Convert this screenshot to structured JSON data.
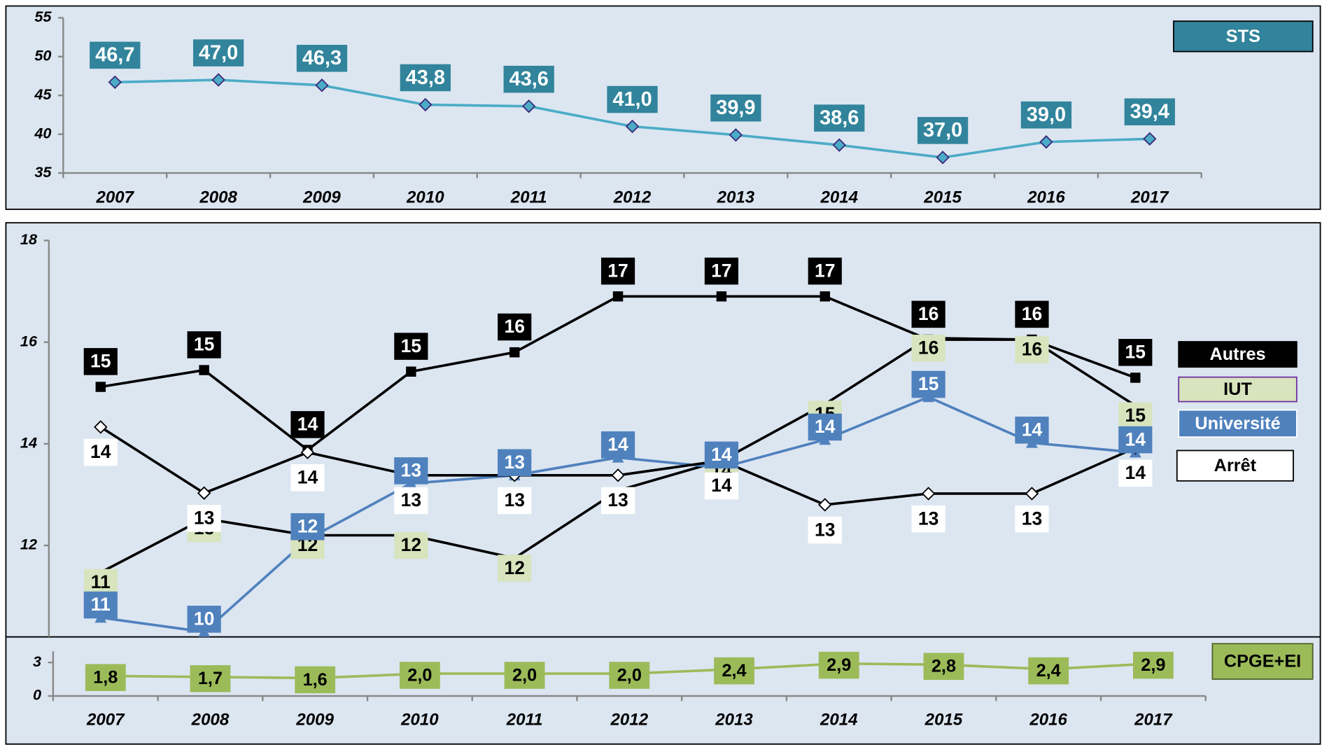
{
  "chart_data": [
    {
      "type": "line",
      "categories": [
        "2007",
        "2008",
        "2009",
        "2010",
        "2011",
        "2012",
        "2013",
        "2014",
        "2015",
        "2016",
        "2017"
      ],
      "series": [
        {
          "name": "STS",
          "color": "#31849b",
          "line_color": "#4bacc6",
          "marker": "diamond",
          "values": [
            46.7,
            47.0,
            46.3,
            43.8,
            43.6,
            41.0,
            39.9,
            38.6,
            37.0,
            39.0,
            39.4
          ],
          "value_labels": [
            "46,7",
            "47,0",
            "46,3",
            "43,8",
            "43,6",
            "41,0",
            "39,9",
            "38,6",
            "37,0",
            "39,0",
            "39,4"
          ]
        }
      ],
      "ylim": [
        35,
        55
      ],
      "yticks": [
        35,
        40,
        45,
        50,
        55
      ]
    },
    {
      "type": "line",
      "series": [
        {
          "name": "Autres",
          "color": "#000000",
          "line_color": "#000000",
          "marker": "square",
          "values": [
            15.12,
            15.45,
            13.88,
            15.42,
            15.8,
            16.9,
            16.9,
            16.9,
            16.05,
            16.05,
            15.3
          ],
          "value_labels": [
            "15",
            "15",
            "14",
            "15",
            "16",
            "17",
            "17",
            "17",
            "16",
            "16",
            "15"
          ]
        },
        {
          "name": "IUT",
          "color": "#d7e4bd",
          "line_color": "#000000",
          "marker": "dot",
          "values": [
            11.47,
            12.53,
            12.2,
            12.2,
            11.75,
            13.08,
            13.67,
            14.78,
            16.08,
            16.05,
            14.75
          ],
          "value_labels": [
            "11",
            "13",
            "12",
            "12",
            "12",
            "13",
            "14",
            "15",
            "16",
            "16",
            "15"
          ]
        },
        {
          "name": "Université",
          "color": "#4f81bd",
          "line_color": "#4f81bd",
          "marker": "triangle",
          "values": [
            10.58,
            10.3,
            12.12,
            13.22,
            13.38,
            13.73,
            13.53,
            14.08,
            14.92,
            14.02,
            13.83
          ],
          "value_labels": [
            "11",
            "10",
            "12",
            "13",
            "13",
            "14",
            "14",
            "14",
            "15",
            "14",
            "14"
          ]
        },
        {
          "name": "Arrêt",
          "color": "#ffffff",
          "line_color": "#000000",
          "marker": "diamond",
          "values": [
            14.33,
            13.03,
            13.83,
            13.38,
            13.38,
            13.38,
            13.67,
            12.8,
            13.02,
            13.02,
            13.92
          ],
          "value_labels": [
            "14",
            "13",
            "14",
            "13",
            "13",
            "13",
            "14",
            "13",
            "13",
            "13",
            "14"
          ]
        }
      ],
      "ylim": [
        10.2,
        18
      ],
      "yticks": [
        12,
        14,
        16,
        18
      ]
    },
    {
      "type": "line",
      "categories": [
        "2007",
        "2008",
        "2009",
        "2010",
        "2011",
        "2012",
        "2013",
        "2014",
        "2015",
        "2016",
        "2017"
      ],
      "series": [
        {
          "name": "CPGE+EI",
          "color": "#9bbb59",
          "line_color": "#9bbb59",
          "marker": "none",
          "values": [
            1.8,
            1.7,
            1.6,
            2.0,
            2.0,
            2.0,
            2.4,
            2.9,
            2.8,
            2.4,
            2.9
          ],
          "value_labels": [
            "1,8",
            "1,7",
            "1,6",
            "2,0",
            "2,0",
            "2,0",
            "2,4",
            "2,9",
            "2,8",
            "2,4",
            "2,9"
          ]
        }
      ],
      "ylim": [
        0,
        4
      ],
      "yticks": [
        0,
        3
      ]
    }
  ]
}
